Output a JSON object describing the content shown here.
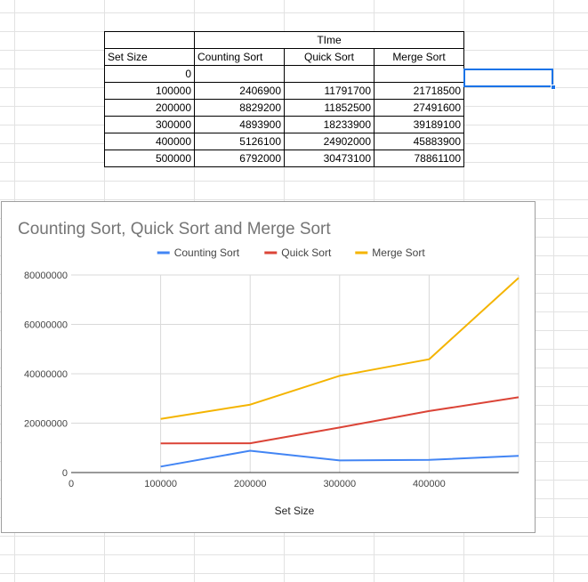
{
  "table": {
    "group_header": "TIme",
    "headers": [
      "Set Size",
      "Counting Sort",
      "Quick Sort",
      "Merge Sort"
    ],
    "rows": [
      [
        "0",
        "",
        "",
        ""
      ],
      [
        "100000",
        "2406900",
        "11791700",
        "21718500"
      ],
      [
        "200000",
        "8829200",
        "11852500",
        "27491600"
      ],
      [
        "300000",
        "4893900",
        "18233900",
        "39189100"
      ],
      [
        "400000",
        "5126100",
        "24902000",
        "45883900"
      ],
      [
        "500000",
        "6792000",
        "30473100",
        "78861100"
      ]
    ]
  },
  "chart_data": {
    "type": "line",
    "title": "Counting Sort, Quick Sort and Merge Sort",
    "xlabel": "Set Size",
    "ylabel": "",
    "x": [
      100000,
      200000,
      300000,
      400000,
      500000
    ],
    "xlim": [
      0,
      500000
    ],
    "ylim": [
      0,
      80000000
    ],
    "xticks": [
      0,
      100000,
      200000,
      300000,
      400000
    ],
    "yticks": [
      0,
      20000000,
      40000000,
      60000000,
      80000000
    ],
    "grid": true,
    "legend_position": "top",
    "series": [
      {
        "name": "Counting Sort",
        "color": "#4285f4",
        "values": [
          2406900,
          8829200,
          4893900,
          5126100,
          6792000
        ]
      },
      {
        "name": "Quick Sort",
        "color": "#db4437",
        "values": [
          11791700,
          11852500,
          18233900,
          24902000,
          30473100
        ]
      },
      {
        "name": "Merge Sort",
        "color": "#f4b400",
        "values": [
          21718500,
          27491600,
          39189100,
          45883900,
          78861100
        ]
      }
    ]
  }
}
